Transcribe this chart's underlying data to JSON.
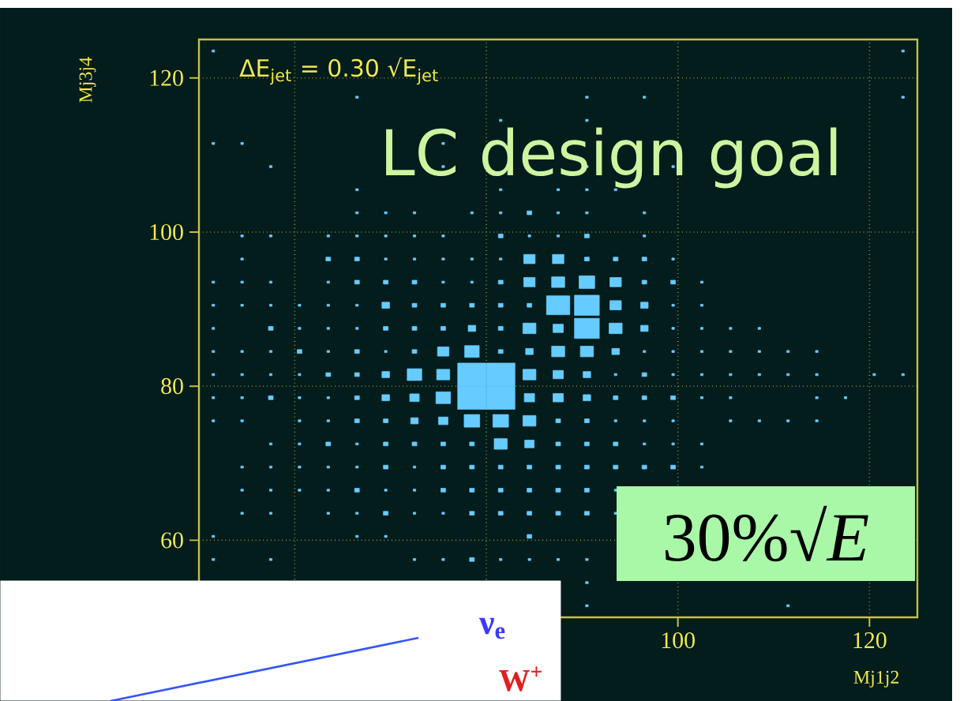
{
  "chart_data": {
    "type": "bubble",
    "xlabel": "Mj1j2",
    "ylabel": "Mj3j4",
    "xlim": [
      50,
      125
    ],
    "ylim": [
      50,
      125
    ],
    "xticks": [
      {
        "value": 60,
        "label": null
      },
      {
        "value": 80,
        "label": null
      },
      100,
      120
    ],
    "yticks": [
      60,
      80,
      100,
      120
    ],
    "grid": true,
    "marker": "square",
    "color": "#66ccff",
    "annotations": [
      "ΔE$_{jet}$ = 0.30 √E$_{jet}$",
      "LC design goal",
      "30%√*E*",
      "ν$_{e}$",
      "W$^{+}$"
    ],
    "series": [
      {
        "x": [
          51.5,
          123.5
        ],
        "values": [
          123.5,
          123.5
        ],
        "sizes": [
          0.008,
          0.008
        ]
      },
      {
        "x": [
          66.5,
          90.5,
          96.5,
          123.5
        ],
        "values": [
          117.5,
          117.5,
          117.5,
          117.5
        ],
        "sizes": [
          0.008,
          0.008,
          0.008,
          0.008
        ]
      },
      {
        "x": [
          81.5,
          90.5
        ],
        "values": [
          114.5,
          114.5
        ],
        "sizes": [
          0.008,
          0.008
        ]
      },
      {
        "x": [
          51.5,
          54.5,
          75.5
        ],
        "values": [
          111.5,
          111.5,
          111.5
        ],
        "sizes": [
          0.008,
          0.008,
          0.008
        ]
      },
      {
        "x": [
          57.5,
          75.5,
          90.5,
          99.5
        ],
        "values": [
          108.5,
          108.5,
          108.5,
          108.5
        ],
        "sizes": [
          0.008,
          0.008,
          0.008,
          0.008
        ]
      },
      {
        "x": [
          66.5,
          81.5,
          87.5,
          90.5,
          93.5
        ],
        "values": [
          105.5,
          105.5,
          105.5,
          105.5,
          105.5
        ],
        "sizes": [
          0.008,
          0.008,
          0.008,
          0.008,
          0.008
        ]
      },
      {
        "x": [
          66.5,
          69.5,
          72.5,
          78.5,
          81.5,
          84.5,
          87.5,
          90.5,
          96.5
        ],
        "values": [
          102.5,
          102.5,
          102.5,
          102.5,
          102.5,
          102.5,
          102.5,
          102.5,
          102.5
        ],
        "sizes": [
          0.008,
          0.008,
          0.008,
          0.008,
          0.008,
          0.027,
          0.008,
          0.008,
          0.008
        ]
      },
      {
        "x": [
          54.5,
          57.5,
          63.5,
          66.5,
          69.5,
          72.5,
          75.5,
          81.5,
          84.5,
          87.5,
          90.5,
          96.5
        ],
        "values": [
          99.5,
          99.5,
          99.5,
          99.5,
          99.5,
          99.5,
          99.5,
          99.5,
          99.5,
          99.5,
          99.5,
          99.5
        ],
        "sizes": [
          0.008,
          0.008,
          0.008,
          0.008,
          0.008,
          0.008,
          0.008,
          0.027,
          0.008,
          0.008,
          0.027,
          0.008
        ]
      },
      {
        "x": [
          54.5,
          63.5,
          66.5,
          69.5,
          72.5,
          75.5,
          78.5,
          81.5,
          84.5,
          87.5,
          90.5,
          93.5,
          96.5,
          99.5
        ],
        "values": [
          96.5,
          96.5,
          96.5,
          96.5,
          96.5,
          96.5,
          96.5,
          96.5,
          96.5,
          96.5,
          96.5,
          96.5,
          96.5,
          96.5
        ],
        "sizes": [
          0.008,
          0.027,
          0.027,
          0.008,
          0.008,
          0.008,
          0.008,
          0.008,
          0.16,
          0.16,
          0.027,
          0.027,
          0.027,
          0.008
        ]
      },
      {
        "x": [
          51.5,
          54.5,
          57.5,
          63.5,
          66.5,
          69.5,
          72.5,
          75.5,
          78.5,
          81.5,
          84.5,
          87.5,
          90.5,
          93.5,
          96.5,
          99.5,
          102.5
        ],
        "values": [
          93.5,
          93.5,
          93.5,
          93.5,
          93.5,
          93.5,
          93.5,
          93.5,
          93.5,
          93.5,
          93.5,
          93.5,
          93.5,
          93.5,
          93.5,
          93.5,
          93.5
        ],
        "sizes": [
          0.008,
          0.008,
          0.008,
          0.008,
          0.027,
          0.027,
          0.027,
          0.008,
          0.008,
          0.027,
          0.16,
          0.21,
          0.3,
          0.16,
          0.027,
          0.027,
          0.008
        ]
      },
      {
        "x": [
          51.5,
          54.5,
          57.5,
          60.5,
          63.5,
          66.5,
          69.5,
          72.5,
          75.5,
          78.5,
          81.5,
          84.5,
          87.5,
          90.5,
          93.5,
          96.5,
          99.5,
          102.5
        ],
        "values": [
          90.5,
          90.5,
          90.5,
          90.5,
          90.5,
          90.5,
          90.5,
          90.5,
          90.5,
          90.5,
          90.5,
          90.5,
          90.5,
          90.5,
          90.5,
          90.5,
          90.5,
          90.5
        ],
        "sizes": [
          0.008,
          0.008,
          0.008,
          0.008,
          0.008,
          0.008,
          0.07,
          0.027,
          0.027,
          0.027,
          0.027,
          0.027,
          0.67,
          0.76,
          0.16,
          0.07,
          0.008,
          0.008
        ]
      },
      {
        "x": [
          51.5,
          57.5,
          60.5,
          63.5,
          66.5,
          69.5,
          72.5,
          75.5,
          78.5,
          81.5,
          84.5,
          87.5,
          90.5,
          93.5,
          96.5,
          99.5,
          102.5,
          105.5,
          108.5
        ],
        "values": [
          87.5,
          87.5,
          87.5,
          87.5,
          87.5,
          87.5,
          87.5,
          87.5,
          87.5,
          87.5,
          87.5,
          87.5,
          87.5,
          87.5,
          87.5,
          87.5,
          87.5,
          87.5,
          87.5
        ],
        "sizes": [
          0.008,
          0.027,
          0.008,
          0.008,
          0.008,
          0.027,
          0.027,
          0.027,
          0.07,
          0.027,
          0.21,
          0.13,
          0.76,
          0.21,
          0.07,
          0.008,
          0.008,
          0.008,
          0.008
        ]
      },
      {
        "x": [
          51.5,
          54.5,
          57.5,
          60.5,
          63.5,
          66.5,
          69.5,
          72.5,
          75.5,
          78.5,
          81.5,
          84.5,
          87.5,
          90.5,
          93.5,
          96.5,
          99.5,
          102.5,
          105.5,
          108.5,
          111.5,
          114.5
        ],
        "values": [
          84.5,
          84.5,
          84.5,
          84.5,
          84.5,
          84.5,
          84.5,
          84.5,
          84.5,
          84.5,
          84.5,
          84.5,
          84.5,
          84.5,
          84.5,
          84.5,
          84.5,
          84.5,
          84.5,
          84.5,
          84.5,
          84.5
        ],
        "sizes": [
          0.008,
          0.008,
          0.008,
          0.027,
          0.008,
          0.027,
          0.008,
          0.027,
          0.16,
          0.26,
          0.027,
          0.07,
          0.21,
          0.21,
          0.07,
          0.008,
          0.008,
          0.008,
          0.008,
          0.008,
          0.008,
          0.008
        ]
      },
      {
        "x": [
          51.5,
          54.5,
          57.5,
          60.5,
          63.5,
          66.5,
          69.5,
          72.5,
          75.5,
          78.5,
          81.5,
          84.5,
          87.5,
          90.5,
          93.5,
          96.5,
          99.5,
          102.5,
          105.5,
          108.5,
          111.5,
          114.5,
          120.5,
          123.5
        ],
        "values": [
          81.5,
          81.5,
          81.5,
          81.5,
          81.5,
          81.5,
          81.5,
          81.5,
          81.5,
          81.5,
          81.5,
          81.5,
          81.5,
          81.5,
          81.5,
          81.5,
          81.5,
          81.5,
          81.5,
          81.5,
          81.5,
          81.5,
          81.5,
          81.5
        ],
        "sizes": [
          0.008,
          0.008,
          0.008,
          0.008,
          0.027,
          0.027,
          0.07,
          0.26,
          0.21,
          1,
          1,
          0.21,
          0.13,
          0.07,
          0.008,
          0.027,
          0.008,
          0.008,
          0.008,
          0.008,
          0.008,
          0.008,
          0.008,
          0.008
        ]
      },
      {
        "x": [
          51.5,
          54.5,
          57.5,
          60.5,
          63.5,
          66.5,
          69.5,
          72.5,
          75.5,
          78.5,
          81.5,
          84.5,
          87.5,
          90.5,
          93.5,
          96.5,
          99.5,
          102.5,
          105.5,
          114.5,
          117.5
        ],
        "values": [
          78.5,
          78.5,
          78.5,
          78.5,
          78.5,
          78.5,
          78.5,
          78.5,
          78.5,
          78.5,
          78.5,
          78.5,
          78.5,
          78.5,
          78.5,
          78.5,
          78.5,
          78.5,
          78.5,
          78.5,
          78.5
        ],
        "sizes": [
          0.008,
          0.008,
          0.027,
          0.008,
          0.008,
          0.027,
          0.07,
          0.11,
          0.26,
          1,
          1,
          0.13,
          0.13,
          0.07,
          0.027,
          0.027,
          0.027,
          0.008,
          0.008,
          0.008,
          0.008
        ]
      },
      {
        "x": [
          51.5,
          54.5,
          60.5,
          63.5,
          66.5,
          69.5,
          72.5,
          75.5,
          78.5,
          81.5,
          84.5,
          87.5,
          90.5,
          93.5,
          96.5,
          99.5,
          105.5,
          108.5,
          111.5,
          114.5
        ],
        "values": [
          75.5,
          75.5,
          75.5,
          75.5,
          75.5,
          75.5,
          75.5,
          75.5,
          75.5,
          75.5,
          75.5,
          75.5,
          75.5,
          75.5,
          75.5,
          75.5,
          75.5,
          75.5,
          75.5,
          75.5
        ],
        "sizes": [
          0.008,
          0.008,
          0.008,
          0.008,
          0.027,
          0.027,
          0.07,
          0.11,
          0.3,
          0.3,
          0.21,
          0.027,
          0.027,
          0.008,
          0.008,
          0.008,
          0.008,
          0.008,
          0.008,
          0.008
        ]
      },
      {
        "x": [
          57.5,
          60.5,
          63.5,
          66.5,
          69.5,
          72.5,
          75.5,
          78.5,
          81.5,
          84.5,
          87.5,
          90.5,
          93.5,
          96.5,
          99.5,
          102.5
        ],
        "values": [
          72.5,
          72.5,
          72.5,
          72.5,
          72.5,
          72.5,
          72.5,
          72.5,
          72.5,
          72.5,
          72.5,
          72.5,
          72.5,
          72.5,
          72.5,
          72.5
        ],
        "sizes": [
          0.008,
          0.008,
          0.027,
          0.008,
          0.027,
          0.027,
          0.027,
          0.027,
          0.21,
          0.11,
          0.027,
          0.027,
          0.027,
          0.008,
          0.008,
          0.008
        ]
      },
      {
        "x": [
          54.5,
          57.5,
          60.5,
          63.5,
          66.5,
          69.5,
          72.5,
          75.5,
          78.5,
          81.5,
          84.5,
          87.5,
          90.5,
          93.5,
          96.5,
          99.5,
          102.5
        ],
        "values": [
          69.5,
          69.5,
          69.5,
          69.5,
          69.5,
          69.5,
          69.5,
          69.5,
          69.5,
          69.5,
          69.5,
          69.5,
          69.5,
          69.5,
          69.5,
          69.5,
          69.5
        ],
        "sizes": [
          0.008,
          0.008,
          0.008,
          0.008,
          0.008,
          0.027,
          0.008,
          0.027,
          0.027,
          0.027,
          0.027,
          0.027,
          0.027,
          0.027,
          0.027,
          0.027,
          0.008
        ]
      },
      {
        "x": [
          54.5,
          57.5,
          60.5,
          63.5,
          66.5,
          69.5,
          72.5,
          75.5,
          78.5,
          81.5,
          84.5,
          87.5,
          90.5,
          93.5
        ],
        "values": [
          66.5,
          66.5,
          66.5,
          66.5,
          66.5,
          66.5,
          66.5,
          66.5,
          66.5,
          66.5,
          66.5,
          66.5,
          66.5,
          66.5
        ],
        "sizes": [
          0.008,
          0.008,
          0.008,
          0.008,
          0.027,
          0.008,
          0.008,
          0.027,
          0.027,
          0.027,
          0.027,
          0.027,
          0.027,
          0.008
        ]
      },
      {
        "x": [
          54.5,
          57.5,
          63.5,
          66.5,
          69.5,
          72.5,
          75.5,
          78.5,
          81.5,
          84.5,
          87.5,
          90.5,
          93.5
        ],
        "values": [
          63.5,
          63.5,
          63.5,
          63.5,
          63.5,
          63.5,
          63.5,
          63.5,
          63.5,
          63.5,
          63.5,
          63.5,
          63.5
        ],
        "sizes": [
          0.008,
          0.008,
          0.008,
          0.008,
          0.027,
          0.008,
          0.008,
          0.027,
          0.027,
          0.027,
          0.027,
          0.027,
          0.008
        ]
      },
      {
        "x": [
          51.5,
          66.5,
          69.5,
          84.5
        ],
        "values": [
          60.5,
          60.5,
          60.5,
          60.5
        ],
        "sizes": [
          0.008,
          0.008,
          0.008,
          0.027
        ]
      },
      {
        "x": [
          51.5,
          57.5,
          72.5,
          75.5,
          78.5,
          81.5,
          84.5,
          87.5,
          90.5
        ],
        "values": [
          57.5,
          57.5,
          57.5,
          57.5,
          57.5,
          57.5,
          57.5,
          57.5,
          57.5
        ],
        "sizes": [
          0.008,
          0.008,
          0.008,
          0.008,
          0.027,
          0.008,
          0.008,
          0.008,
          0.008
        ]
      },
      {
        "x": [
          90.5
        ],
        "values": [
          54.5
        ],
        "sizes": [
          0.008
        ]
      },
      {
        "x": [
          90.5,
          111.5
        ],
        "values": [
          51.5,
          51.5
        ],
        "sizes": [
          0.008,
          0.008
        ]
      }
    ]
  }
}
